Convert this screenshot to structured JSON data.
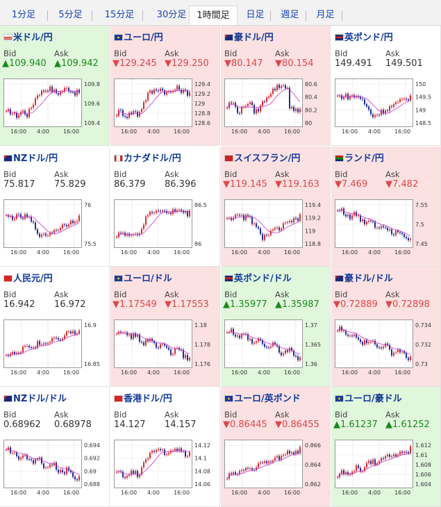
{
  "tabs": [
    {
      "label": "1分足",
      "active": false
    },
    {
      "label": "5分足",
      "active": false
    },
    {
      "label": "15分足",
      "active": false
    },
    {
      "label": "30分足",
      "active": false
    },
    {
      "label": "1時間足",
      "active": true
    },
    {
      "label": "日足",
      "active": false
    },
    {
      "label": "週足",
      "active": false
    },
    {
      "label": "月足",
      "active": false
    }
  ],
  "colors": {
    "up": "#1a8a1a",
    "down": "#e2464b",
    "up_bg": "#e0f7dc",
    "down_bg": "#fbe1e1",
    "candle_up": "#e3262b",
    "candle_down": "#1f2c9a",
    "ma": "#cc33cc"
  },
  "bid_label": "Bid",
  "ask_label": "Ask",
  "x_ticks": [
    "16:00",
    "4:00",
    "16:00"
  ],
  "pairs": [
    {
      "name": "米ドル/円",
      "flag": "us",
      "trend": "up",
      "bid": "▲109.940",
      "ask": "▲109.942",
      "yticks": [
        "109.8",
        "109.6",
        "109.4"
      ],
      "chart_data": {
        "type": "candlestick",
        "shape": "rise_jump"
      }
    },
    {
      "name": "ユーロ/円",
      "flag": "eu",
      "trend": "down",
      "bid": "▼129.245",
      "ask": "▼129.250",
      "yticks": [
        "129.4",
        "129.2",
        "129",
        "128.8",
        "128.6"
      ],
      "chart_data": {
        "type": "candlestick",
        "shape": "rise_jump"
      }
    },
    {
      "name": "豪ドル/円",
      "flag": "au",
      "trend": "down",
      "bid": "▼80.147",
      "ask": "▼80.154",
      "yticks": [
        "80.6",
        "80.4",
        "80.2",
        "80"
      ],
      "chart_data": {
        "type": "candlestick",
        "shape": "rise_dip"
      }
    },
    {
      "name": "英ポンド/円",
      "flag": "gb",
      "trend": "flat",
      "bid": "149.491",
      "ask": "149.501",
      "yticks": [
        "150",
        "149.5",
        "149",
        "148.5"
      ],
      "chart_data": {
        "type": "candlestick",
        "shape": "dip_recover"
      }
    },
    {
      "name": "NZドル/円",
      "flag": "nz",
      "trend": "flat",
      "bid": "75.817",
      "ask": "75.829",
      "yticks": [
        "76",
        "75.5"
      ],
      "chart_data": {
        "type": "candlestick",
        "shape": "dip_recover"
      }
    },
    {
      "name": "カナダドル/円",
      "flag": "ca",
      "trend": "flat",
      "bid": "86.379",
      "ask": "86.396",
      "yticks": [
        "86.5",
        "86"
      ],
      "chart_data": {
        "type": "candlestick",
        "shape": "rise_jump"
      }
    },
    {
      "name": "スイスフラン/円",
      "flag": "ch",
      "trend": "down",
      "bid": "▼119.145",
      "ask": "▼119.163",
      "yticks": [
        "119.4",
        "119.2",
        "119",
        "118.8"
      ],
      "chart_data": {
        "type": "candlestick",
        "shape": "dip_recover"
      }
    },
    {
      "name": "ランド/円",
      "flag": "za",
      "trend": "down",
      "bid": "▼7.469",
      "ask": "▼7.482",
      "yticks": [
        "7.55",
        "7.5",
        "7.45"
      ],
      "chart_data": {
        "type": "candlestick",
        "shape": "fall"
      }
    },
    {
      "name": "人民元/円",
      "flag": "cn",
      "trend": "flat",
      "bid": "16.942",
      "ask": "16.972",
      "yticks": [
        "16.9",
        "16.85"
      ],
      "chart_data": {
        "type": "candlestick",
        "shape": "rise"
      }
    },
    {
      "name": "ユーロ/ドル",
      "flag": "eu",
      "trend": "down",
      "bid": "▼1.17549",
      "ask": "▼1.17553",
      "yticks": [
        "1.18",
        "1.178",
        "1.176"
      ],
      "chart_data": {
        "type": "candlestick",
        "shape": "fall"
      }
    },
    {
      "name": "英ポンド/ドル",
      "flag": "gb",
      "trend": "up",
      "bid": "▲1.35977",
      "ask": "▲1.35987",
      "yticks": [
        "1.37",
        "1.365",
        "1.36"
      ],
      "chart_data": {
        "type": "candlestick",
        "shape": "fall"
      }
    },
    {
      "name": "豪ドル/ドル",
      "flag": "au",
      "trend": "down",
      "bid": "▼0.72889",
      "ask": "▼0.72898",
      "yticks": [
        "0.734",
        "0.732",
        "0.73"
      ],
      "chart_data": {
        "type": "candlestick",
        "shape": "fall"
      }
    },
    {
      "name": "NZドル/ドル",
      "flag": "nz",
      "trend": "flat",
      "bid": "0.68962",
      "ask": "0.68978",
      "yticks": [
        "0.694",
        "0.692",
        "0.69",
        "0.688"
      ],
      "chart_data": {
        "type": "candlestick",
        "shape": "fall"
      }
    },
    {
      "name": "香港ドル/円",
      "flag": "hk",
      "trend": "flat",
      "bid": "14.127",
      "ask": "14.157",
      "yticks": [
        "14.12",
        "14.1",
        "14.08",
        "14.06"
      ],
      "chart_data": {
        "type": "candlestick",
        "shape": "rise_jump"
      }
    },
    {
      "name": "ユーロ/英ポンド",
      "flag": "eu",
      "trend": "down",
      "bid": "▼0.86445",
      "ask": "▼0.86455",
      "yticks": [
        "0.866",
        "0.864",
        "0.862"
      ],
      "chart_data": {
        "type": "candlestick",
        "shape": "rise"
      }
    },
    {
      "name": "ユーロ/豪ドル",
      "flag": "eu",
      "trend": "up",
      "bid": "▲1.61237",
      "ask": "▲1.61252",
      "yticks": [
        "1.612",
        "1.61",
        "1.608",
        "1.606",
        "1.604"
      ],
      "chart_data": {
        "type": "candlestick",
        "shape": "rise"
      }
    }
  ]
}
